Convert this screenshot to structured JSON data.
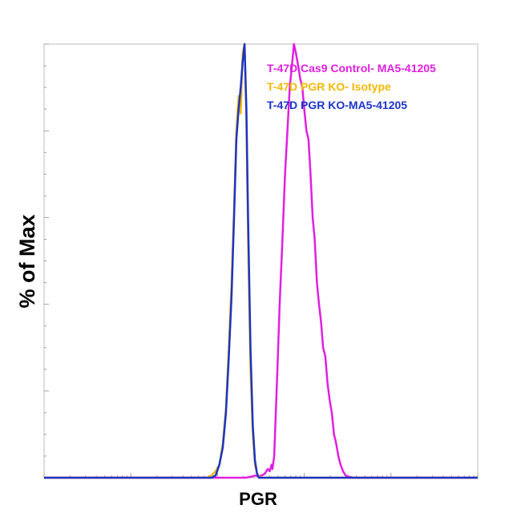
{
  "chart_data": {
    "type": "line",
    "title": "",
    "xlabel": "PGR",
    "ylabel": "% of Max",
    "x_scale": "log",
    "xlim": [
      1,
      100000
    ],
    "ylim": [
      0,
      100
    ],
    "grid": false,
    "legend_position": "top-right",
    "series": [
      {
        "name": "T-47D Cas9 Control- MA5-41205",
        "color": "#e020e0",
        "x": [
          210,
          240,
          275,
          300,
          320,
          350,
          380,
          400,
          420,
          430,
          450,
          470,
          490,
          520,
          560,
          600,
          640,
          680,
          720,
          760,
          800,
          850,
          900,
          950,
          1000,
          1060,
          1120,
          1180,
          1250,
          1320,
          1400,
          1480,
          1560,
          1650,
          1750,
          1850,
          1960,
          2080,
          2200,
          2330,
          2470,
          2620,
          2800,
          3000,
          3300,
          3700
        ],
        "y": [
          0,
          0.2,
          0.5,
          0.3,
          0.5,
          0.9,
          2,
          1.5,
          3,
          2,
          5,
          15,
          25,
          40,
          55,
          70,
          80,
          90,
          95,
          100,
          98,
          95,
          92,
          90,
          85,
          80,
          78,
          70,
          60,
          55,
          45,
          40,
          36,
          30,
          28,
          22,
          18,
          15,
          10,
          8,
          5,
          3,
          1.5,
          0.5,
          0.2,
          0
        ]
      },
      {
        "name": "T-47D PGR KO- Isotype",
        "color": "#f2b705",
        "x": [
          75,
          85,
          95,
          105,
          115,
          125,
          135,
          145,
          155,
          165,
          175,
          185,
          195,
          205,
          215,
          225,
          240,
          255,
          270,
          285,
          300,
          330
        ],
        "y": [
          0,
          0.5,
          1.5,
          3,
          8,
          16,
          30,
          45,
          62,
          80,
          88,
          84,
          98,
          100,
          82,
          55,
          25,
          10,
          3,
          1,
          0.3,
          0
        ]
      },
      {
        "name": "T-47D PGR KO-MA5-41205",
        "color": "#1c34c8",
        "x": [
          85,
          95,
          105,
          115,
          125,
          135,
          145,
          155,
          165,
          175,
          185,
          195,
          205,
          215,
          225,
          240,
          255,
          270,
          285,
          300
        ],
        "y": [
          0,
          0.5,
          3,
          7,
          15,
          28,
          42,
          60,
          78,
          85,
          90,
          96,
          100,
          85,
          60,
          30,
          12,
          4,
          1,
          0
        ]
      }
    ]
  }
}
